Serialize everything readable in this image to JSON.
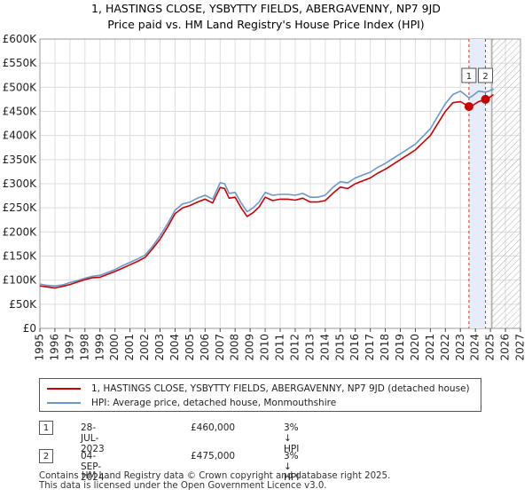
{
  "chart_data": {
    "type": "line",
    "title": "1, HASTINGS CLOSE, YSBYTTY FIELDS, ABERGAVENNY, NP7 9JD",
    "subtitle": "Price paid vs. HM Land Registry's House Price Index (HPI)",
    "y_ticks": [
      "£0",
      "£50K",
      "£100K",
      "£150K",
      "£200K",
      "£250K",
      "£300K",
      "£350K",
      "£400K",
      "£450K",
      "£500K",
      "£550K",
      "£600K"
    ],
    "ylim": [
      0,
      600000
    ],
    "x_ticks": [
      "1995",
      "1996",
      "1997",
      "1998",
      "1999",
      "2000",
      "2001",
      "2002",
      "2003",
      "2004",
      "2005",
      "2006",
      "2007",
      "2008",
      "2009",
      "2010",
      "2011",
      "2012",
      "2013",
      "2014",
      "2015",
      "2016",
      "2017",
      "2018",
      "2019",
      "2020",
      "2021",
      "2022",
      "2023",
      "2024",
      "2025",
      "2026",
      "2027"
    ],
    "xlim": [
      1995,
      2027
    ],
    "grid": true,
    "colors": {
      "property": "#cc0000",
      "hpi": "#6699cc",
      "sale_shade": "#e6ecf8",
      "marker_line": "#cc0000",
      "future_hatch": "#999999"
    },
    "series": [
      {
        "name": "1, HASTINGS CLOSE, YSBYTTY FIELDS, ABERGAVENNY, NP7 9JD (detached house)",
        "color": "#cc0000",
        "points": [
          [
            1995.0,
            88000
          ],
          [
            1995.5,
            86000
          ],
          [
            1996.0,
            84000
          ],
          [
            1996.5,
            87000
          ],
          [
            1997.0,
            91000
          ],
          [
            1997.5,
            96000
          ],
          [
            1998.0,
            101000
          ],
          [
            1998.5,
            105000
          ],
          [
            1999.0,
            106000
          ],
          [
            1999.5,
            112000
          ],
          [
            2000.0,
            118000
          ],
          [
            2000.5,
            125000
          ],
          [
            2001.0,
            132000
          ],
          [
            2001.5,
            139000
          ],
          [
            2002.0,
            147000
          ],
          [
            2002.5,
            165000
          ],
          [
            2003.0,
            185000
          ],
          [
            2003.5,
            210000
          ],
          [
            2004.0,
            238000
          ],
          [
            2004.5,
            250000
          ],
          [
            2005.0,
            255000
          ],
          [
            2005.5,
            262000
          ],
          [
            2006.0,
            268000
          ],
          [
            2006.5,
            260000
          ],
          [
            2007.0,
            292000
          ],
          [
            2007.3,
            290000
          ],
          [
            2007.6,
            270000
          ],
          [
            2008.0,
            272000
          ],
          [
            2008.4,
            250000
          ],
          [
            2008.8,
            232000
          ],
          [
            2009.2,
            240000
          ],
          [
            2009.6,
            252000
          ],
          [
            2010.0,
            272000
          ],
          [
            2010.5,
            265000
          ],
          [
            2011.0,
            268000
          ],
          [
            2011.5,
            268000
          ],
          [
            2012.0,
            266000
          ],
          [
            2012.5,
            270000
          ],
          [
            2013.0,
            262000
          ],
          [
            2013.5,
            262000
          ],
          [
            2014.0,
            265000
          ],
          [
            2014.5,
            280000
          ],
          [
            2015.0,
            293000
          ],
          [
            2015.5,
            290000
          ],
          [
            2016.0,
            300000
          ],
          [
            2016.5,
            306000
          ],
          [
            2017.0,
            312000
          ],
          [
            2017.5,
            322000
          ],
          [
            2018.0,
            330000
          ],
          [
            2018.5,
            340000
          ],
          [
            2019.0,
            350000
          ],
          [
            2019.5,
            360000
          ],
          [
            2020.0,
            370000
          ],
          [
            2020.5,
            385000
          ],
          [
            2021.0,
            400000
          ],
          [
            2021.5,
            425000
          ],
          [
            2022.0,
            450000
          ],
          [
            2022.5,
            468000
          ],
          [
            2023.0,
            470000
          ],
          [
            2023.3,
            465000
          ],
          [
            2023.57,
            460000
          ],
          [
            2023.8,
            462000
          ],
          [
            2024.2,
            470000
          ],
          [
            2024.67,
            475000
          ],
          [
            2024.9,
            478000
          ],
          [
            2025.2,
            485000
          ]
        ]
      },
      {
        "name": "HPI: Average price, detached house, Monmouthshire",
        "color": "#6699cc",
        "points": [
          [
            1995.0,
            92000
          ],
          [
            1995.5,
            89000
          ],
          [
            1996.0,
            88000
          ],
          [
            1996.5,
            90000
          ],
          [
            1997.0,
            95000
          ],
          [
            1997.5,
            99000
          ],
          [
            1998.0,
            104000
          ],
          [
            1998.5,
            108000
          ],
          [
            1999.0,
            110000
          ],
          [
            1999.5,
            116000
          ],
          [
            2000.0,
            122000
          ],
          [
            2000.5,
            130000
          ],
          [
            2001.0,
            137000
          ],
          [
            2001.5,
            144000
          ],
          [
            2002.0,
            152000
          ],
          [
            2002.5,
            170000
          ],
          [
            2003.0,
            192000
          ],
          [
            2003.5,
            217000
          ],
          [
            2004.0,
            245000
          ],
          [
            2004.5,
            258000
          ],
          [
            2005.0,
            262000
          ],
          [
            2005.5,
            270000
          ],
          [
            2006.0,
            276000
          ],
          [
            2006.5,
            268000
          ],
          [
            2007.0,
            302000
          ],
          [
            2007.3,
            300000
          ],
          [
            2007.6,
            280000
          ],
          [
            2008.0,
            282000
          ],
          [
            2008.4,
            260000
          ],
          [
            2008.8,
            242000
          ],
          [
            2009.2,
            250000
          ],
          [
            2009.6,
            262000
          ],
          [
            2010.0,
            282000
          ],
          [
            2010.5,
            276000
          ],
          [
            2011.0,
            278000
          ],
          [
            2011.5,
            278000
          ],
          [
            2012.0,
            276000
          ],
          [
            2012.5,
            280000
          ],
          [
            2013.0,
            272000
          ],
          [
            2013.5,
            272000
          ],
          [
            2014.0,
            276000
          ],
          [
            2014.5,
            292000
          ],
          [
            2015.0,
            304000
          ],
          [
            2015.5,
            302000
          ],
          [
            2016.0,
            312000
          ],
          [
            2016.5,
            318000
          ],
          [
            2017.0,
            324000
          ],
          [
            2017.5,
            334000
          ],
          [
            2018.0,
            342000
          ],
          [
            2018.5,
            352000
          ],
          [
            2019.0,
            362000
          ],
          [
            2019.5,
            372000
          ],
          [
            2020.0,
            382000
          ],
          [
            2020.5,
            398000
          ],
          [
            2021.0,
            414000
          ],
          [
            2021.5,
            440000
          ],
          [
            2022.0,
            466000
          ],
          [
            2022.5,
            485000
          ],
          [
            2023.0,
            492000
          ],
          [
            2023.3,
            485000
          ],
          [
            2023.57,
            478000
          ],
          [
            2023.8,
            482000
          ],
          [
            2024.2,
            492000
          ],
          [
            2024.67,
            490000
          ],
          [
            2024.9,
            492000
          ],
          [
            2025.2,
            497000
          ]
        ]
      }
    ],
    "annotations": [
      {
        "label": "1",
        "date": "28-JUL-2023",
        "x": 2023.57,
        "value": 460000,
        "price": "£460,000",
        "hpi_note": "3% ↓ HPI"
      },
      {
        "label": "2",
        "date": "04-SEP-2024",
        "x": 2024.67,
        "value": 475000,
        "price": "£475,000",
        "hpi_note": "3% ↓ HPI"
      }
    ],
    "data_end_x": 2025.1
  },
  "footer": {
    "line1": "Contains HM Land Registry data © Crown copyright and database right 2025.",
    "line2": "This data is licensed under the Open Government Licence v3.0."
  }
}
